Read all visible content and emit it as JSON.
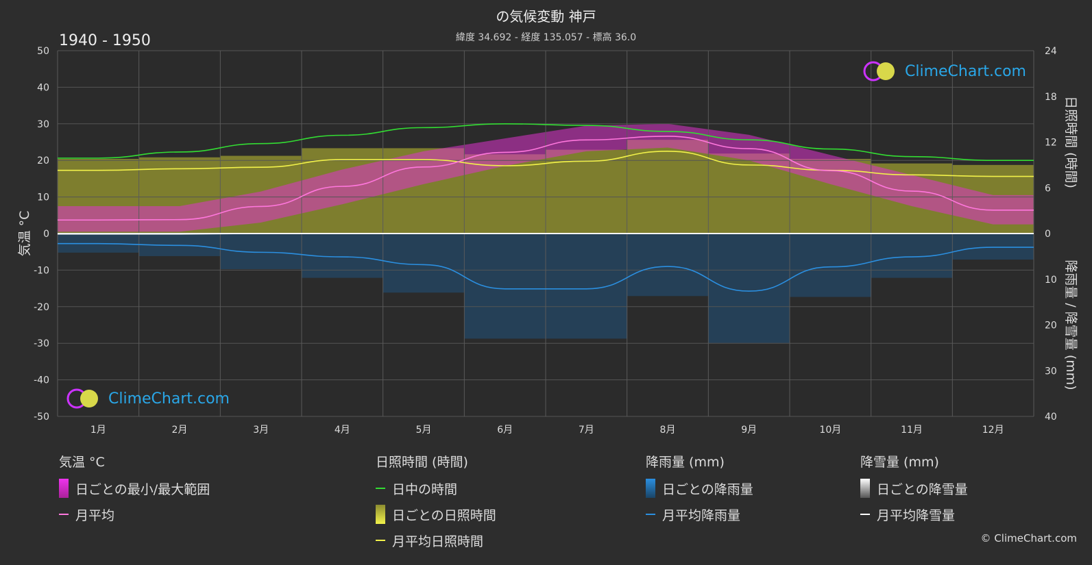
{
  "title": "の気候変動 神戸",
  "subtitle": "緯度 34.692 - 経度 135.057 - 標高 36.0",
  "period": "1940 - 1950",
  "logo_text": "ClimeChart.com",
  "copyright": "© ClimeChart.com",
  "colors": {
    "background": "#2d2d2d",
    "daylight": "#33dd33",
    "sunshine_mean": "#f2f24a",
    "sunshine_band": "#9b9b30",
    "temp_mean": "#ff77dd",
    "temp_band": "#dd33cc",
    "rain_mean": "#2b8fe0",
    "rain_bar": "#1e5c8f",
    "snow_mean": "#ffffff",
    "zero_line": "#dddddd"
  },
  "legend": {
    "temp": {
      "heading": "気温 °C",
      "items": [
        "日ごとの最小/最大範囲",
        "月平均"
      ]
    },
    "sun": {
      "heading": "日照時間 (時間)",
      "items": [
        "日中の時間",
        "日ごとの日照時間",
        "月平均日照時間"
      ]
    },
    "rain": {
      "heading": "降雨量 (mm)",
      "items": [
        "日ごとの降雨量",
        "月平均降雨量"
      ]
    },
    "snow": {
      "heading": "降雪量 (mm)",
      "items": [
        "日ごとの降雪量",
        "月平均降雪量"
      ]
    }
  },
  "chart_data": {
    "type": "line",
    "categories": [
      "1月",
      "2月",
      "3月",
      "4月",
      "5月",
      "6月",
      "7月",
      "8月",
      "9月",
      "10月",
      "11月",
      "12月"
    ],
    "y_left": {
      "label": "気温 °C",
      "range": [
        -50,
        50
      ],
      "ticks": [
        50,
        40,
        30,
        20,
        10,
        0,
        -10,
        -20,
        -30,
        -40,
        -50
      ]
    },
    "y_right_top": {
      "label": "日照時間 (時間)",
      "range": [
        0,
        24
      ],
      "ticks": [
        24,
        18,
        12,
        6,
        0
      ]
    },
    "y_right_bottom": {
      "label": "降雨量 / 降雪量 (mm)",
      "range": [
        0,
        40
      ],
      "ticks": [
        0,
        10,
        20,
        30,
        40
      ]
    },
    "grid": true,
    "series": [
      {
        "name": "日中の時間",
        "unit": "hours",
        "values": [
          9.9,
          10.7,
          11.8,
          12.9,
          13.9,
          14.4,
          14.2,
          13.4,
          12.3,
          11.1,
          10.1,
          9.6
        ]
      },
      {
        "name": "月平均日照時間",
        "unit": "hours",
        "values": [
          8.3,
          8.5,
          8.7,
          9.7,
          9.7,
          8.9,
          9.5,
          10.8,
          9.0,
          8.3,
          7.7,
          7.5
        ]
      },
      {
        "name": "月平均",
        "unit": "°C",
        "values": [
          3.7,
          3.8,
          7.4,
          12.9,
          18.2,
          22.2,
          25.6,
          26.6,
          23.2,
          17.2,
          11.6,
          6.4
        ]
      },
      {
        "name": "月平均降雨量",
        "unit": "mm",
        "values": [
          2.2,
          2.6,
          4.1,
          5.1,
          6.8,
          12.1,
          12.1,
          7.2,
          12.6,
          7.3,
          5.1,
          3.0
        ]
      },
      {
        "name": "月平均降雪量",
        "unit": "mm",
        "values": [
          0.1,
          0.1,
          0.0,
          0.0,
          0.0,
          0.0,
          0.0,
          0.0,
          0.0,
          0.0,
          0.0,
          0.0
        ]
      }
    ],
    "temp_range": {
      "name": "日ごとの最小/最大範囲",
      "min": [
        0.5,
        0.5,
        3.0,
        8.0,
        13.5,
        18.5,
        22.5,
        23.5,
        20.0,
        13.5,
        7.5,
        2.5
      ],
      "max": [
        7.5,
        7.5,
        11.5,
        17.5,
        22.5,
        26.0,
        29.5,
        30.0,
        27.0,
        21.5,
        16.0,
        10.5
      ]
    }
  }
}
